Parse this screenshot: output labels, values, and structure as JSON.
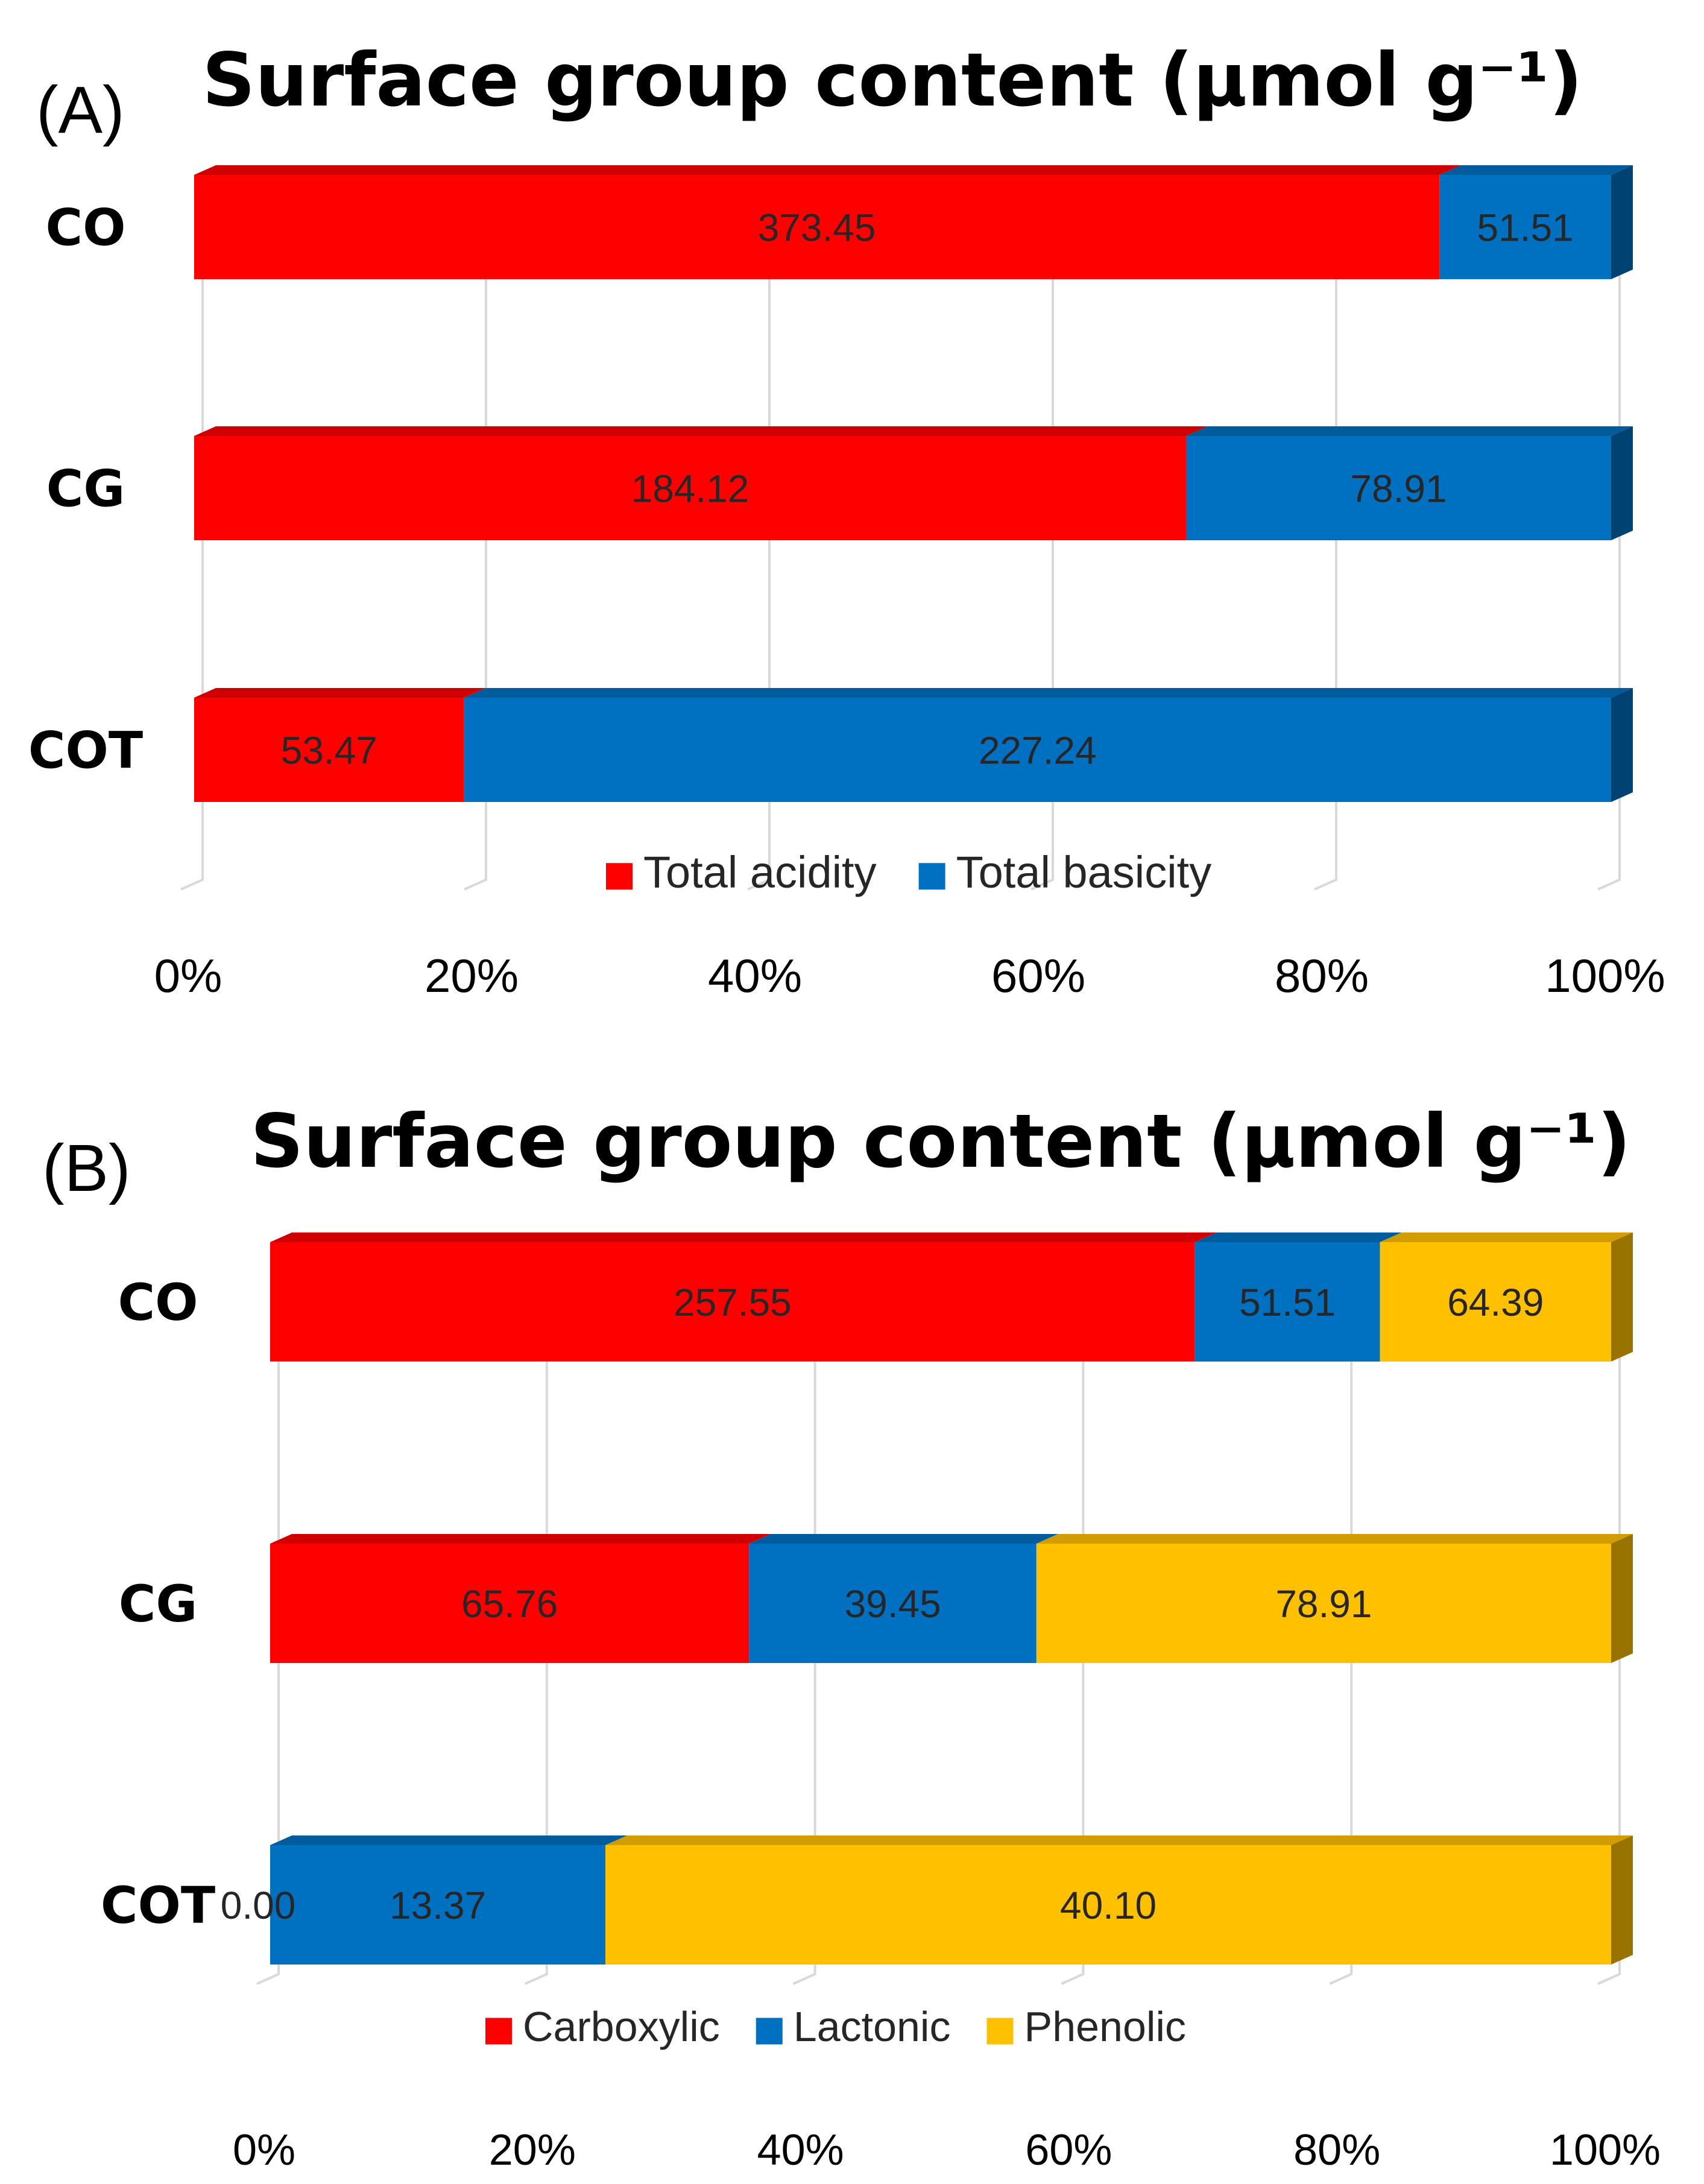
{
  "chart_data": [
    {
      "type": "bar",
      "orientation": "horizontal",
      "stacked": "percent",
      "panel_label": "(A)",
      "title": "Surface group content (µmol g⁻¹)",
      "categories": [
        "CO",
        "CG",
        "COT"
      ],
      "series": [
        {
          "name": "Total acidity",
          "color": "#ff0000",
          "values": [
            373.45,
            184.12,
            53.47
          ]
        },
        {
          "name": "Total basicity",
          "color": "#0070c0",
          "values": [
            51.51,
            78.91,
            227.24
          ]
        }
      ],
      "data_labels": [
        [
          "373.45",
          "184.12",
          "53.47"
        ],
        [
          "51.51",
          "78.91",
          "227.24"
        ]
      ],
      "x_ticks": [
        "0%",
        "20%",
        "40%",
        "60%",
        "80%",
        "100%"
      ],
      "xlim": [
        0,
        100
      ],
      "grid": true,
      "legend": "bottom"
    },
    {
      "type": "bar",
      "orientation": "horizontal",
      "stacked": "percent",
      "panel_label": "(B)",
      "title": "Surface group content (µmol g⁻¹)",
      "categories": [
        "CO",
        "CG",
        "COT"
      ],
      "series": [
        {
          "name": "Carboxylic",
          "color": "#ff0000",
          "values": [
            257.55,
            65.76,
            0.0
          ]
        },
        {
          "name": "Lactonic",
          "color": "#0070c0",
          "values": [
            51.51,
            39.45,
            13.37
          ]
        },
        {
          "name": "Phenolic",
          "color": "#ffc000",
          "values": [
            64.39,
            78.91,
            40.1
          ]
        }
      ],
      "data_labels": [
        [
          "257.55",
          "65.76",
          "0.00"
        ],
        [
          "51.51",
          "39.45",
          "13.37"
        ],
        [
          "64.39",
          "78.91",
          "40.10"
        ]
      ],
      "x_ticks": [
        "0%",
        "20%",
        "40%",
        "60%",
        "80%",
        "100%"
      ],
      "xlim": [
        0,
        100
      ],
      "grid": true,
      "legend": "bottom"
    }
  ]
}
